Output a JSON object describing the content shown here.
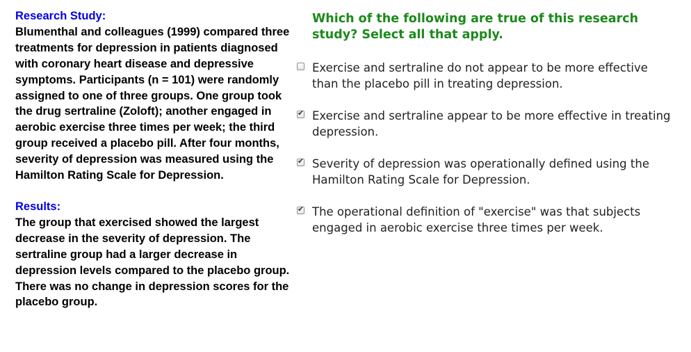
{
  "research": {
    "heading": "Research Study:",
    "body": "Blumenthal and colleagues (1999) compared three treatments for depression in patients diagnosed with coronary heart disease and depressive symptoms. Participants (n = 101) were randomly assigned to one of three groups. One group took the drug sertraline (Zoloft); another engaged in aerobic exercise three times per week; the third group received a placebo pill. After four months, severity of depression was measured using the Hamilton Rating Scale for Depression."
  },
  "results": {
    "heading": "Results:",
    "body": "The group that exercised showed the largest decrease in the severity of depression. The sertraline group had a larger decrease in depression levels compared to the placebo group. There was no change in depression scores for the placebo group."
  },
  "question": {
    "text": "Which of the following are true of this research study? Select all that apply.",
    "check_glyph": "✔",
    "options": [
      {
        "label": "Exercise and sertraline do not appear to be more effective than the placebo pill in treating depression.",
        "checked": false
      },
      {
        "label": "Exercise and sertraline appear to be more effective in treating depression.",
        "checked": true
      },
      {
        "label": "Severity of depression was operationally defined using the Hamilton Rating Scale for Depression.",
        "checked": true
      },
      {
        "label": "The operational definition of \"exercise\" was that subjects engaged in aerobic exercise three times per week.",
        "checked": true
      }
    ]
  }
}
